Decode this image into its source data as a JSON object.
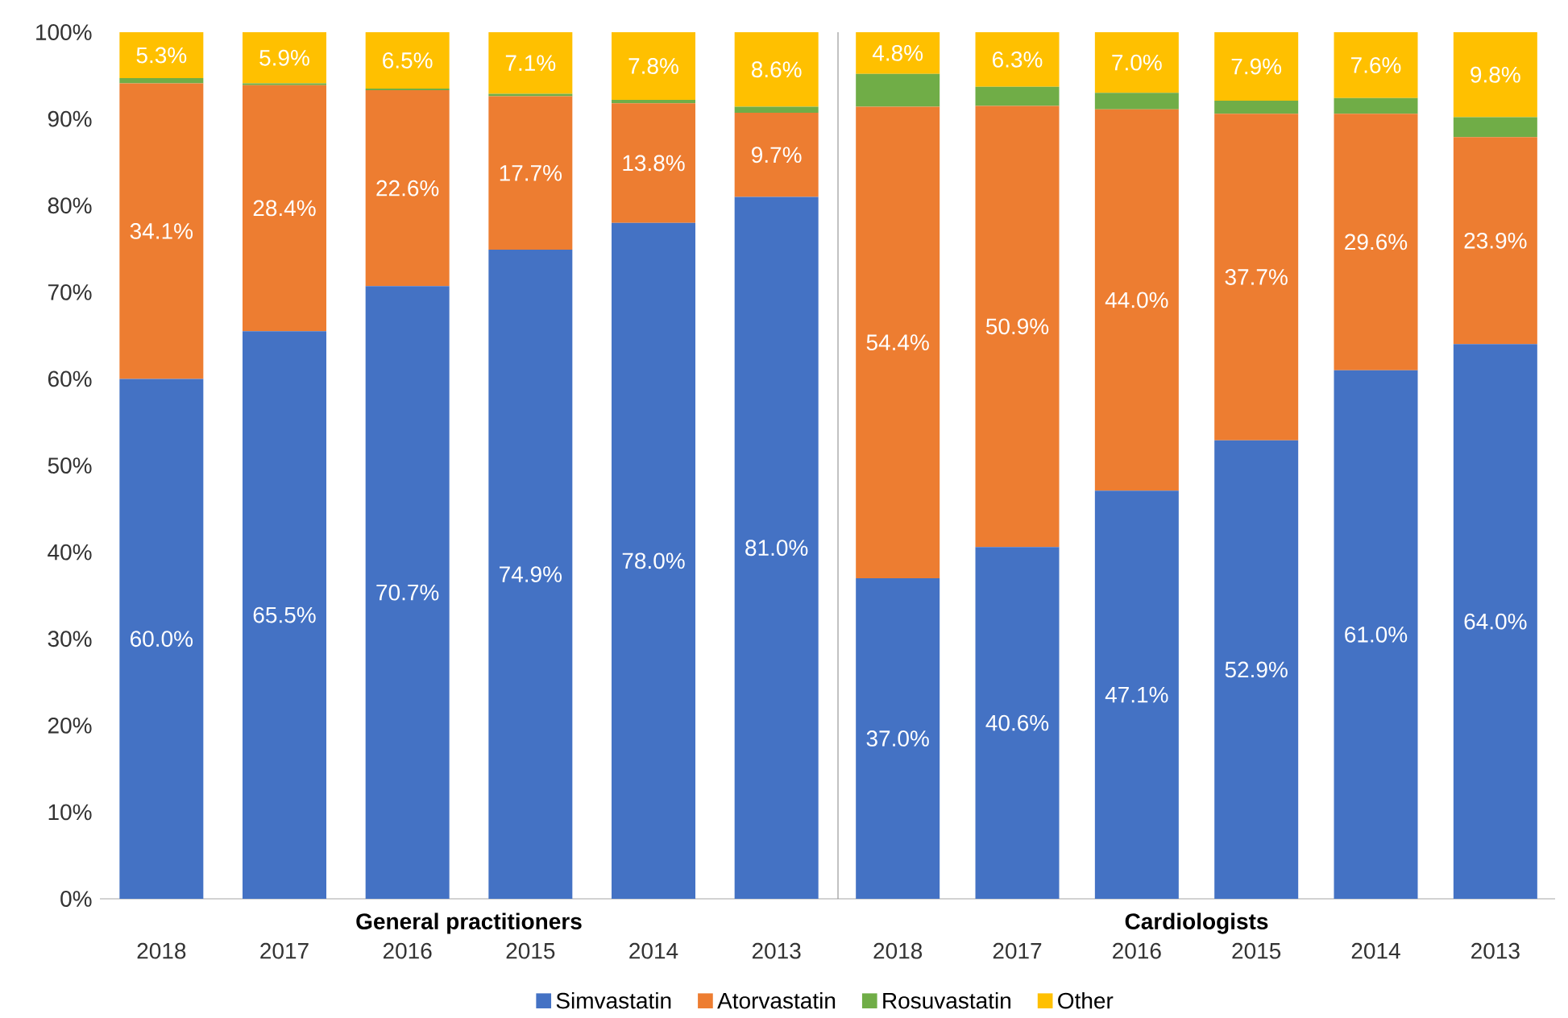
{
  "chart_data": [
    {
      "type": "bar",
      "stacked": true,
      "xlabel": "General practitioners",
      "categories": [
        "2018",
        "2017",
        "2016",
        "2015",
        "2014",
        "2013"
      ],
      "ylim": [
        0,
        100
      ],
      "yticks": [
        {
          "value": 0,
          "label": "0%"
        },
        {
          "value": 10,
          "label": "10%"
        },
        {
          "value": 20,
          "label": "20%"
        },
        {
          "value": 30,
          "label": "30%"
        },
        {
          "value": 40,
          "label": "40%"
        },
        {
          "value": 50,
          "label": "50%"
        },
        {
          "value": 60,
          "label": "60%"
        },
        {
          "value": 70,
          "label": "70%"
        },
        {
          "value": 80,
          "label": "80%"
        },
        {
          "value": 90,
          "label": "90%"
        },
        {
          "value": 100,
          "label": "100%"
        }
      ],
      "legend": "bottom",
      "series": [
        {
          "name": "Simvastatin",
          "color": "#4472c4",
          "values": [
            60.0,
            65.5,
            70.7,
            74.9,
            78.0,
            81.0
          ],
          "value_labels": [
            "60.0%",
            "65.5%",
            "70.7%",
            "74.9%",
            "78.0%",
            "81.0%"
          ]
        },
        {
          "name": "Atorvastatin",
          "color": "#ed7d31",
          "values": [
            34.1,
            28.4,
            22.6,
            17.7,
            13.8,
            9.7
          ],
          "value_labels": [
            "34.1%",
            "28.4%",
            "22.6%",
            "17.7%",
            "13.8%",
            "9.7%"
          ]
        },
        {
          "name": "Rosuvastatin",
          "color": "#70ad47",
          "values": [
            0.6,
            0.2,
            0.2,
            0.3,
            0.4,
            0.7
          ]
        },
        {
          "name": "Other",
          "color": "#ffc000",
          "values": [
            5.3,
            5.9,
            6.5,
            7.1,
            7.8,
            8.6
          ],
          "value_labels": [
            "5.3%",
            "5.9%",
            "6.5%",
            "7.1%",
            "7.8%",
            "8.6%"
          ]
        }
      ]
    },
    {
      "type": "bar",
      "stacked": true,
      "xlabel": "Cardiologists",
      "categories": [
        "2018",
        "2017",
        "2016",
        "2015",
        "2014",
        "2013"
      ],
      "ylim": [
        0,
        100
      ],
      "tick_labels": "x",
      "series": [
        {
          "color": "#4472c4",
          "values": [
            37.0,
            40.6,
            47.1,
            52.9,
            61.0,
            64.0
          ],
          "value_labels": [
            "37.0%",
            "40.6%",
            "47.1%",
            "52.9%",
            "61.0%",
            "64.0%"
          ]
        },
        {
          "color": "#ed7d31",
          "values": [
            54.4,
            50.9,
            44.0,
            37.7,
            29.6,
            23.9
          ],
          "value_labels": [
            "54.4%",
            "50.9%",
            "44.0%",
            "37.7%",
            "29.6%",
            "23.9%"
          ]
        },
        {
          "color": "#70ad47",
          "values": [
            3.8,
            2.2,
            1.9,
            1.5,
            1.8,
            2.3
          ]
        },
        {
          "color": "#ffc000",
          "values": [
            4.8,
            6.3,
            7.0,
            7.9,
            7.6,
            9.8
          ],
          "value_labels": [
            "4.8%",
            "6.3%",
            "7.0%",
            "7.9%",
            "7.6%",
            "9.8%"
          ]
        }
      ]
    }
  ]
}
